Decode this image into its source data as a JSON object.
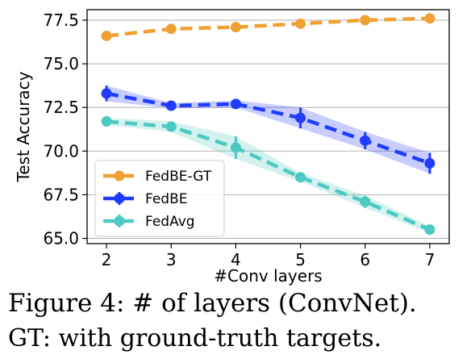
{
  "chart_data": {
    "type": "line",
    "title": "",
    "xlabel": "#Conv layers",
    "ylabel": "Test Accuracy",
    "x": [
      2,
      3,
      4,
      5,
      6,
      7
    ],
    "xticks": [
      "2",
      "3",
      "4",
      "5",
      "6",
      "7"
    ],
    "ylim": [
      64.7,
      78.1
    ],
    "yticks": [
      "65.0",
      "67.5",
      "70.0",
      "72.5",
      "75.0",
      "77.5"
    ],
    "grid": "horizontal",
    "legend_position": "lower-left",
    "series": [
      {
        "name": "FedBE-GT",
        "color": "#f0a030",
        "values": [
          76.6,
          77.0,
          77.1,
          77.3,
          77.5,
          77.6
        ],
        "err": [
          0,
          0,
          0,
          0,
          0,
          0
        ]
      },
      {
        "name": "FedBE",
        "color": "#1f3cff",
        "values": [
          73.3,
          72.6,
          72.7,
          71.9,
          70.6,
          69.3
        ],
        "err": [
          0.45,
          0.15,
          0.2,
          0.6,
          0.5,
          0.6
        ]
      },
      {
        "name": "FedAvg",
        "color": "#4cc9c0",
        "values": [
          71.7,
          71.4,
          70.2,
          68.5,
          67.1,
          65.5
        ],
        "err": [
          0.2,
          0.3,
          0.65,
          0.25,
          0.35,
          0.2
        ]
      }
    ]
  },
  "caption": {
    "line1": "Figure 4: # of layers (ConvNet).",
    "line2": "GT: with ground-truth targets."
  }
}
